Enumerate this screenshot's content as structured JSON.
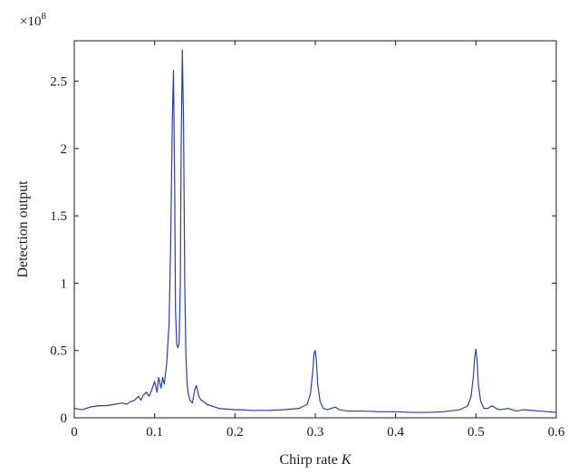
{
  "chart_data": {
    "type": "line",
    "title": "",
    "xlabel": "Chirp rate",
    "xlabel_var": "K",
    "ylabel": "Detection output",
    "y_multiplier_base": "×10",
    "y_multiplier_exp": "8",
    "xlim": [
      0,
      0.6
    ],
    "ylim": [
      0,
      2.8
    ],
    "x_ticks": [
      0,
      0.1,
      0.2,
      0.3,
      0.4,
      0.5,
      0.6
    ],
    "x_tick_labels": [
      "0",
      "0.1",
      "0.2",
      "0.3",
      "0.4",
      "0.5",
      "0.6"
    ],
    "y_ticks": [
      0,
      0.5,
      1,
      1.5,
      2,
      2.5
    ],
    "y_tick_labels": [
      "0",
      "0.5",
      "1",
      "1.5",
      "2",
      "2.5"
    ],
    "grid": false,
    "line_color": "#2b3f9e",
    "series": [
      {
        "x": [
          0,
          0.01,
          0.02,
          0.03,
          0.04,
          0.05,
          0.06,
          0.065,
          0.07,
          0.075,
          0.08,
          0.083,
          0.086,
          0.09,
          0.093,
          0.096,
          0.1,
          0.103,
          0.105,
          0.108,
          0.11,
          0.112,
          0.115,
          0.118,
          0.12,
          0.122,
          0.1235,
          0.125,
          0.126,
          0.1275,
          0.129,
          0.1305,
          0.132,
          0.133,
          0.1345,
          0.136,
          0.1375,
          0.139,
          0.1405,
          0.142,
          0.144,
          0.147,
          0.15,
          0.152,
          0.155,
          0.158,
          0.161,
          0.165,
          0.17,
          0.175,
          0.18,
          0.19,
          0.2,
          0.21,
          0.22,
          0.24,
          0.26,
          0.28,
          0.29,
          0.294,
          0.297,
          0.2985,
          0.3,
          0.3015,
          0.303,
          0.306,
          0.31,
          0.315,
          0.32,
          0.325,
          0.33,
          0.34,
          0.36,
          0.38,
          0.4,
          0.42,
          0.44,
          0.46,
          0.48,
          0.49,
          0.494,
          0.497,
          0.4985,
          0.5,
          0.5015,
          0.503,
          0.506,
          0.51,
          0.515,
          0.52,
          0.525,
          0.53,
          0.54,
          0.55,
          0.56,
          0.58,
          0.6
        ],
        "values": [
          0.07,
          0.06,
          0.08,
          0.09,
          0.09,
          0.1,
          0.11,
          0.1,
          0.12,
          0.13,
          0.16,
          0.13,
          0.17,
          0.19,
          0.16,
          0.2,
          0.27,
          0.19,
          0.3,
          0.22,
          0.3,
          0.25,
          0.4,
          0.7,
          1.3,
          2.2,
          2.58,
          1.7,
          0.8,
          0.55,
          0.52,
          0.55,
          1.0,
          2.0,
          2.73,
          2.2,
          1.0,
          0.45,
          0.25,
          0.18,
          0.13,
          0.11,
          0.21,
          0.24,
          0.16,
          0.13,
          0.12,
          0.1,
          0.09,
          0.08,
          0.07,
          0.065,
          0.06,
          0.06,
          0.055,
          0.055,
          0.06,
          0.07,
          0.1,
          0.18,
          0.35,
          0.48,
          0.5,
          0.42,
          0.25,
          0.12,
          0.07,
          0.06,
          0.07,
          0.08,
          0.06,
          0.05,
          0.05,
          0.045,
          0.045,
          0.04,
          0.04,
          0.045,
          0.06,
          0.09,
          0.16,
          0.32,
          0.45,
          0.51,
          0.42,
          0.25,
          0.12,
          0.07,
          0.07,
          0.09,
          0.07,
          0.06,
          0.07,
          0.05,
          0.06,
          0.05,
          0.04
        ]
      }
    ]
  }
}
